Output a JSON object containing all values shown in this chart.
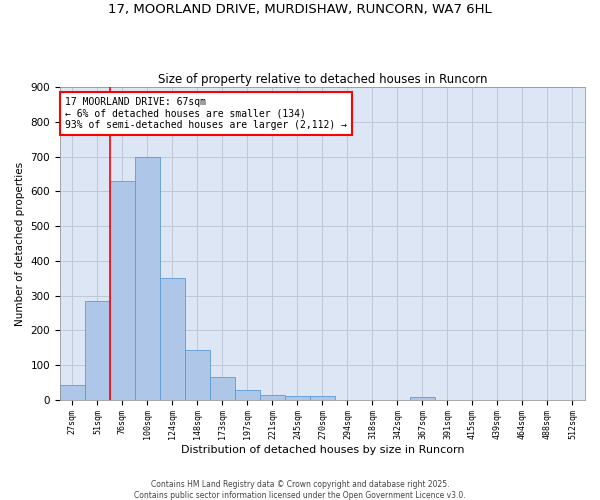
{
  "title_line1": "17, MOORLAND DRIVE, MURDISHAW, RUNCORN, WA7 6HL",
  "title_line2": "Size of property relative to detached houses in Runcorn",
  "xlabel": "Distribution of detached houses by size in Runcorn",
  "ylabel": "Number of detached properties",
  "categories": [
    "27sqm",
    "51sqm",
    "76sqm",
    "100sqm",
    "124sqm",
    "148sqm",
    "173sqm",
    "197sqm",
    "221sqm",
    "245sqm",
    "270sqm",
    "294sqm",
    "318sqm",
    "342sqm",
    "367sqm",
    "391sqm",
    "415sqm",
    "439sqm",
    "464sqm",
    "488sqm",
    "512sqm"
  ],
  "values": [
    42,
    283,
    630,
    700,
    350,
    143,
    65,
    28,
    15,
    11,
    11,
    0,
    0,
    0,
    8,
    0,
    0,
    0,
    0,
    0,
    0
  ],
  "bar_color": "#aec6e8",
  "bar_edge_color": "#5b9bd5",
  "grid_color": "#c0c8d8",
  "bg_color": "#dce6f5",
  "vline_color": "red",
  "vline_x_index": 1.5,
  "annotation_text": "17 MOORLAND DRIVE: 67sqm\n← 6% of detached houses are smaller (134)\n93% of semi-detached houses are larger (2,112) →",
  "footer_text": "Contains HM Land Registry data © Crown copyright and database right 2025.\nContains public sector information licensed under the Open Government Licence v3.0.",
  "ylim": [
    0,
    900
  ],
  "yticks": [
    0,
    100,
    200,
    300,
    400,
    500,
    600,
    700,
    800,
    900
  ],
  "figsize": [
    6.0,
    5.0
  ],
  "dpi": 100
}
